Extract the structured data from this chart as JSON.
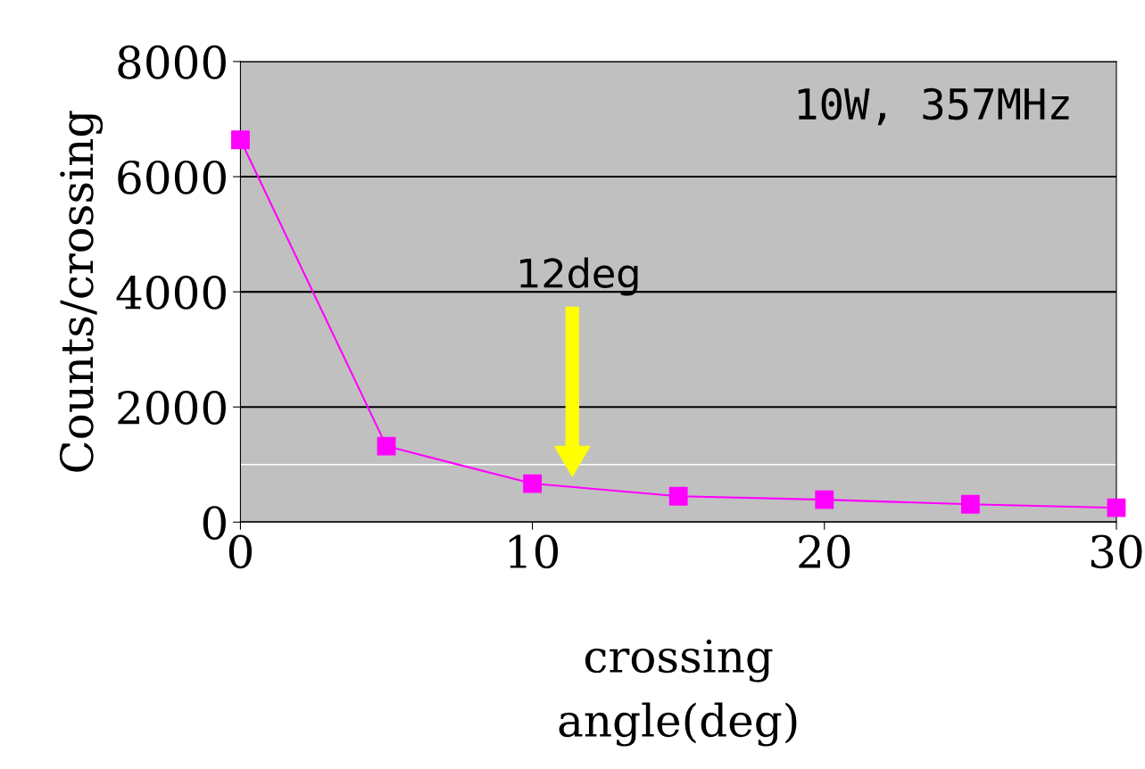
{
  "chart_data": {
    "type": "line",
    "xlabel": "crossing\nangle(deg)",
    "ylabel": "Counts/crossing",
    "x": [
      0,
      5,
      10,
      15,
      20,
      25,
      30
    ],
    "series": [
      {
        "color": "#ff00ff",
        "values": [
          6640,
          1320,
          670,
          450,
          390,
          310,
          250
        ]
      }
    ],
    "marker": "square",
    "line_style": "solid",
    "xlim": [
      0,
      30
    ],
    "xticks": [
      0,
      10,
      20,
      30
    ],
    "ylim": [
      0,
      8000
    ],
    "yticks": [
      0,
      2000,
      4000,
      6000,
      8000
    ],
    "grid": "y",
    "ref_lines": [
      {
        "axis": "y",
        "value": 1000,
        "color": "#ffffff"
      }
    ],
    "annotations": [
      "10W, 357MHz",
      "12deg"
    ]
  }
}
